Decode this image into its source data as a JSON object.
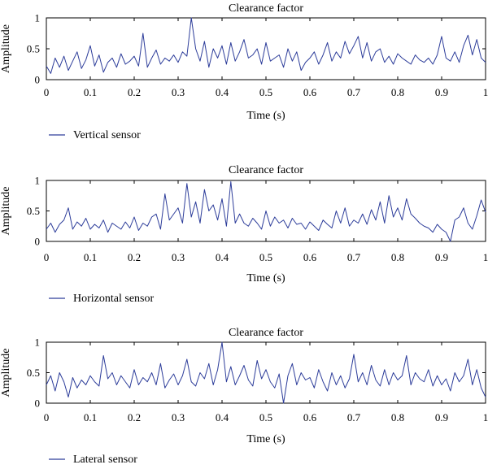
{
  "chart_data": [
    {
      "type": "line",
      "title": "Clearance factor",
      "xlabel": "Time (s)",
      "ylabel": "Amplitude",
      "xlim": [
        0,
        1
      ],
      "ylim": [
        0,
        1
      ],
      "xticks": [
        "0",
        "0.1",
        "0.2",
        "0.3",
        "0.4",
        "0.5",
        "0.6",
        "0.7",
        "0.8",
        "0.9",
        "1"
      ],
      "yticks": [
        "0",
        "0.5",
        "1"
      ],
      "grid": false,
      "legend_position": "bottom-left",
      "series": [
        {
          "name": "Vertical sensor",
          "color": "#2d3d9a",
          "x": [
            0.0,
            0.01,
            0.02,
            0.03,
            0.04,
            0.05,
            0.06,
            0.07,
            0.08,
            0.09,
            0.1,
            0.11,
            0.12,
            0.13,
            0.14,
            0.15,
            0.16,
            0.17,
            0.18,
            0.19,
            0.2,
            0.21,
            0.22,
            0.23,
            0.24,
            0.25,
            0.26,
            0.27,
            0.28,
            0.29,
            0.3,
            0.31,
            0.32,
            0.33,
            0.34,
            0.35,
            0.36,
            0.37,
            0.38,
            0.39,
            0.4,
            0.41,
            0.42,
            0.43,
            0.44,
            0.45,
            0.46,
            0.47,
            0.48,
            0.49,
            0.5,
            0.51,
            0.52,
            0.53,
            0.54,
            0.55,
            0.56,
            0.57,
            0.58,
            0.59,
            0.6,
            0.61,
            0.62,
            0.63,
            0.64,
            0.65,
            0.66,
            0.67,
            0.68,
            0.69,
            0.7,
            0.71,
            0.72,
            0.73,
            0.74,
            0.75,
            0.76,
            0.77,
            0.78,
            0.79,
            0.8,
            0.81,
            0.82,
            0.83,
            0.84,
            0.85,
            0.86,
            0.87,
            0.88,
            0.89,
            0.9,
            0.91,
            0.92,
            0.93,
            0.94,
            0.95,
            0.96,
            0.97,
            0.98,
            0.99,
            1.0
          ],
          "y": [
            0.22,
            0.1,
            0.35,
            0.2,
            0.38,
            0.15,
            0.3,
            0.45,
            0.18,
            0.32,
            0.55,
            0.22,
            0.4,
            0.12,
            0.28,
            0.35,
            0.2,
            0.42,
            0.25,
            0.3,
            0.38,
            0.22,
            0.75,
            0.2,
            0.35,
            0.48,
            0.25,
            0.35,
            0.3,
            0.4,
            0.28,
            0.45,
            0.38,
            1.0,
            0.5,
            0.3,
            0.62,
            0.2,
            0.5,
            0.35,
            0.55,
            0.25,
            0.6,
            0.3,
            0.45,
            0.65,
            0.35,
            0.4,
            0.5,
            0.25,
            0.6,
            0.3,
            0.35,
            0.4,
            0.2,
            0.5,
            0.3,
            0.45,
            0.15,
            0.28,
            0.35,
            0.45,
            0.25,
            0.4,
            0.6,
            0.3,
            0.45,
            0.35,
            0.62,
            0.42,
            0.55,
            0.7,
            0.35,
            0.6,
            0.3,
            0.45,
            0.5,
            0.28,
            0.38,
            0.25,
            0.42,
            0.35,
            0.3,
            0.25,
            0.4,
            0.32,
            0.28,
            0.35,
            0.25,
            0.4,
            0.7,
            0.35,
            0.3,
            0.45,
            0.28,
            0.55,
            0.72,
            0.4,
            0.65,
            0.35,
            0.28
          ]
        }
      ]
    },
    {
      "type": "line",
      "title": "Clearance factor",
      "xlabel": "Time (s)",
      "ylabel": "Amplitude",
      "xlim": [
        0,
        1
      ],
      "ylim": [
        0,
        1
      ],
      "xticks": [
        "0",
        "0.1",
        "0.2",
        "0.3",
        "0.4",
        "0.5",
        "0.6",
        "0.7",
        "0.8",
        "0.9",
        "1"
      ],
      "yticks": [
        "0",
        "0.5",
        "1"
      ],
      "grid": false,
      "legend_position": "bottom-left",
      "series": [
        {
          "name": "Horizontal sensor",
          "color": "#2d3d9a",
          "x": [
            0.0,
            0.01,
            0.02,
            0.03,
            0.04,
            0.05,
            0.06,
            0.07,
            0.08,
            0.09,
            0.1,
            0.11,
            0.12,
            0.13,
            0.14,
            0.15,
            0.16,
            0.17,
            0.18,
            0.19,
            0.2,
            0.21,
            0.22,
            0.23,
            0.24,
            0.25,
            0.26,
            0.27,
            0.28,
            0.29,
            0.3,
            0.31,
            0.32,
            0.33,
            0.34,
            0.35,
            0.36,
            0.37,
            0.38,
            0.39,
            0.4,
            0.41,
            0.42,
            0.43,
            0.44,
            0.45,
            0.46,
            0.47,
            0.48,
            0.49,
            0.5,
            0.51,
            0.52,
            0.53,
            0.54,
            0.55,
            0.56,
            0.57,
            0.58,
            0.59,
            0.6,
            0.61,
            0.62,
            0.63,
            0.64,
            0.65,
            0.66,
            0.67,
            0.68,
            0.69,
            0.7,
            0.71,
            0.72,
            0.73,
            0.74,
            0.75,
            0.76,
            0.77,
            0.78,
            0.79,
            0.8,
            0.81,
            0.82,
            0.83,
            0.84,
            0.85,
            0.86,
            0.87,
            0.88,
            0.89,
            0.9,
            0.91,
            0.92,
            0.93,
            0.94,
            0.95,
            0.96,
            0.97,
            0.98,
            0.99,
            1.0
          ],
          "y": [
            0.2,
            0.3,
            0.15,
            0.28,
            0.35,
            0.55,
            0.2,
            0.32,
            0.25,
            0.38,
            0.2,
            0.28,
            0.22,
            0.35,
            0.15,
            0.3,
            0.25,
            0.2,
            0.32,
            0.22,
            0.4,
            0.18,
            0.3,
            0.25,
            0.4,
            0.45,
            0.2,
            0.78,
            0.35,
            0.45,
            0.55,
            0.3,
            0.95,
            0.4,
            0.65,
            0.3,
            0.85,
            0.5,
            0.6,
            0.35,
            0.7,
            0.25,
            0.98,
            0.3,
            0.45,
            0.3,
            0.25,
            0.38,
            0.3,
            0.2,
            0.5,
            0.25,
            0.4,
            0.3,
            0.35,
            0.22,
            0.38,
            0.28,
            0.3,
            0.2,
            0.32,
            0.25,
            0.18,
            0.35,
            0.28,
            0.22,
            0.5,
            0.3,
            0.55,
            0.25,
            0.35,
            0.3,
            0.45,
            0.28,
            0.52,
            0.35,
            0.65,
            0.3,
            0.75,
            0.4,
            0.55,
            0.35,
            0.7,
            0.45,
            0.38,
            0.3,
            0.25,
            0.22,
            0.15,
            0.28,
            0.2,
            0.15,
            0.0,
            0.35,
            0.4,
            0.55,
            0.3,
            0.2,
            0.42,
            0.68,
            0.48
          ]
        }
      ]
    },
    {
      "type": "line",
      "title": "Clearance factor",
      "xlabel": "Time (s)",
      "ylabel": "Amplitude",
      "xlim": [
        0,
        1
      ],
      "ylim": [
        0,
        1
      ],
      "xticks": [
        "0",
        "0.1",
        "0.2",
        "0.3",
        "0.4",
        "0.5",
        "0.6",
        "0.7",
        "0.8",
        "0.9",
        "1"
      ],
      "yticks": [
        "0",
        "0.5",
        "1"
      ],
      "grid": false,
      "legend_position": "bottom-left",
      "series": [
        {
          "name": "Lateral sensor",
          "color": "#2d3d9a",
          "x": [
            0.0,
            0.01,
            0.02,
            0.03,
            0.04,
            0.05,
            0.06,
            0.07,
            0.08,
            0.09,
            0.1,
            0.11,
            0.12,
            0.13,
            0.14,
            0.15,
            0.16,
            0.17,
            0.18,
            0.19,
            0.2,
            0.21,
            0.22,
            0.23,
            0.24,
            0.25,
            0.26,
            0.27,
            0.28,
            0.29,
            0.3,
            0.31,
            0.32,
            0.33,
            0.34,
            0.35,
            0.36,
            0.37,
            0.38,
            0.39,
            0.4,
            0.41,
            0.42,
            0.43,
            0.44,
            0.45,
            0.46,
            0.47,
            0.48,
            0.49,
            0.5,
            0.51,
            0.52,
            0.53,
            0.54,
            0.55,
            0.56,
            0.57,
            0.58,
            0.59,
            0.6,
            0.61,
            0.62,
            0.63,
            0.64,
            0.65,
            0.66,
            0.67,
            0.68,
            0.69,
            0.7,
            0.71,
            0.72,
            0.73,
            0.74,
            0.75,
            0.76,
            0.77,
            0.78,
            0.79,
            0.8,
            0.81,
            0.82,
            0.83,
            0.84,
            0.85,
            0.86,
            0.87,
            0.88,
            0.89,
            0.9,
            0.91,
            0.92,
            0.93,
            0.94,
            0.95,
            0.96,
            0.97,
            0.98,
            0.99,
            1.0
          ],
          "y": [
            0.3,
            0.45,
            0.2,
            0.5,
            0.35,
            0.1,
            0.42,
            0.25,
            0.38,
            0.3,
            0.45,
            0.35,
            0.28,
            0.78,
            0.4,
            0.5,
            0.3,
            0.45,
            0.35,
            0.25,
            0.55,
            0.3,
            0.42,
            0.35,
            0.5,
            0.3,
            0.65,
            0.25,
            0.38,
            0.48,
            0.3,
            0.45,
            0.72,
            0.35,
            0.28,
            0.5,
            0.4,
            0.65,
            0.3,
            0.55,
            1.0,
            0.35,
            0.6,
            0.3,
            0.45,
            0.62,
            0.38,
            0.28,
            0.7,
            0.4,
            0.55,
            0.35,
            0.25,
            0.48,
            0.0,
            0.45,
            0.65,
            0.3,
            0.5,
            0.38,
            0.42,
            0.25,
            0.55,
            0.35,
            0.2,
            0.5,
            0.3,
            0.45,
            0.25,
            0.4,
            0.8,
            0.35,
            0.5,
            0.3,
            0.62,
            0.38,
            0.28,
            0.55,
            0.3,
            0.5,
            0.38,
            0.45,
            0.78,
            0.3,
            0.5,
            0.4,
            0.35,
            0.55,
            0.28,
            0.45,
            0.3,
            0.4,
            0.2,
            0.5,
            0.35,
            0.45,
            0.72,
            0.3,
            0.55,
            0.25,
            0.1
          ]
        }
      ]
    }
  ]
}
